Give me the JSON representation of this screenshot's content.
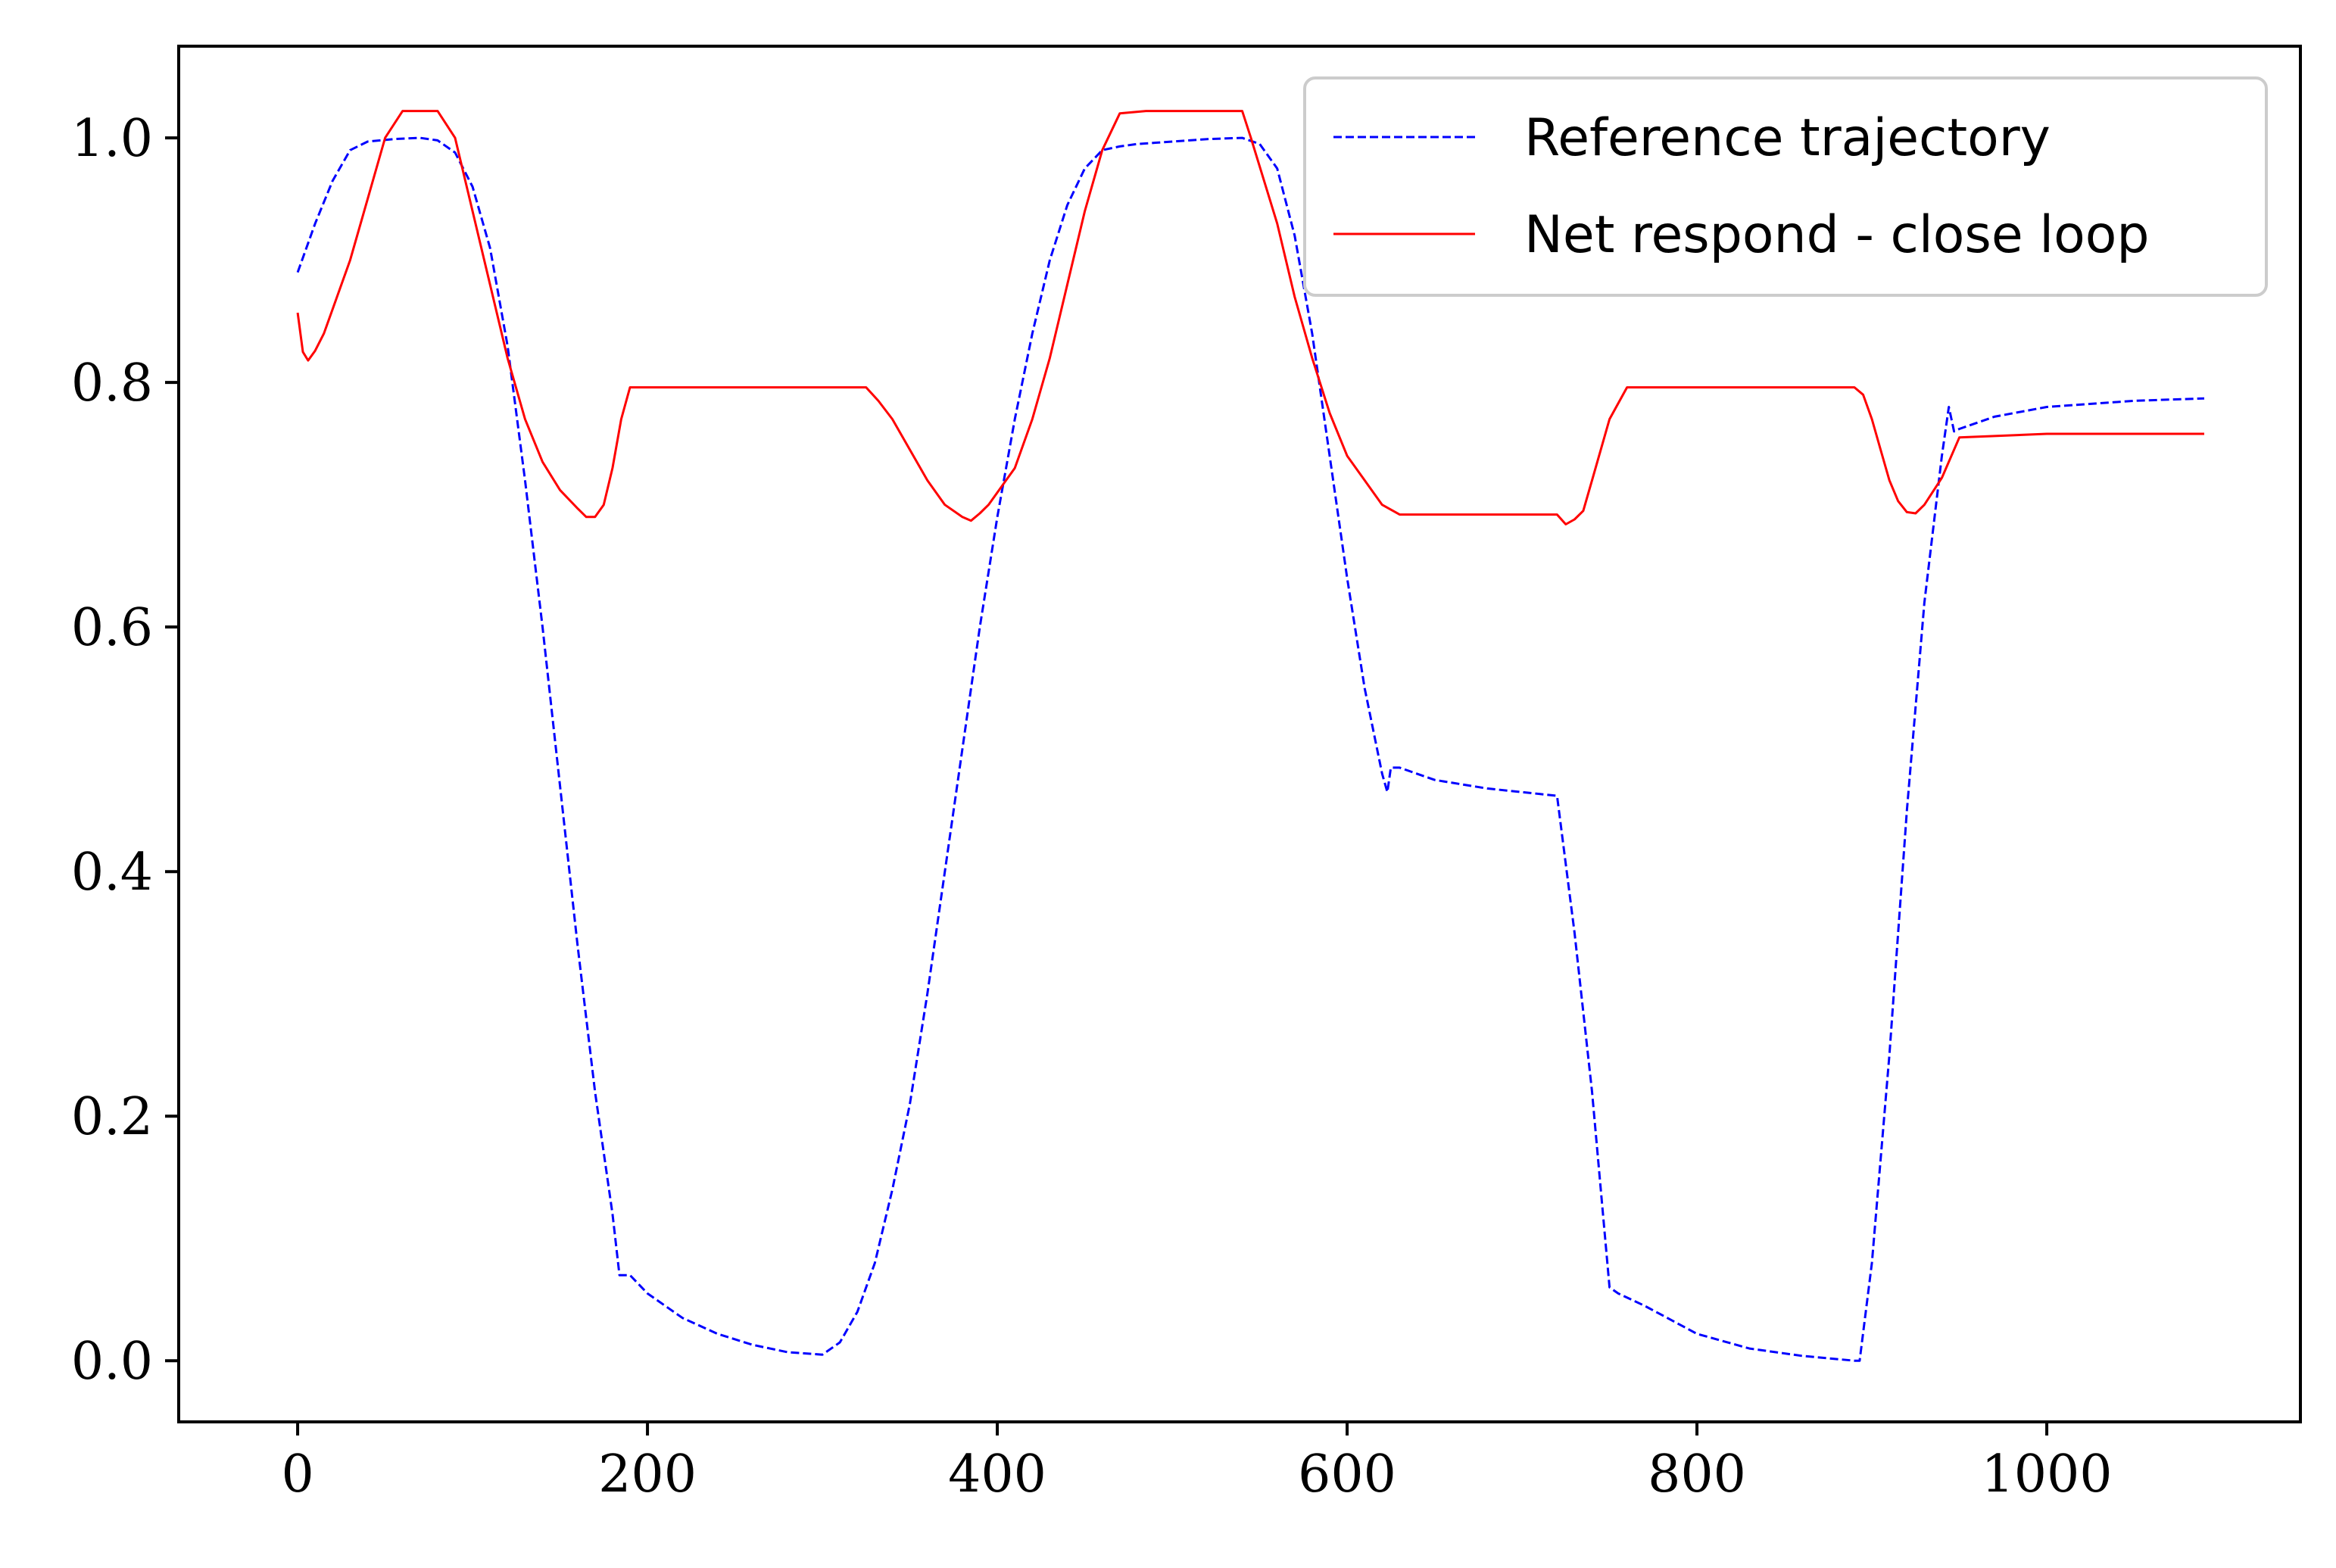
{
  "chart_data": {
    "type": "line",
    "title": "",
    "xlabel": "",
    "ylabel": "",
    "xlim": [
      -68,
      1145
    ],
    "ylim": [
      -0.05,
      1.075
    ],
    "x_ticks": [
      0,
      200,
      400,
      600,
      800,
      1000
    ],
    "x_tick_labels": [
      "0",
      "200",
      "400",
      "600",
      "800",
      "1000"
    ],
    "y_ticks": [
      0.0,
      0.2,
      0.4,
      0.6,
      0.8,
      1.0
    ],
    "y_tick_labels": [
      "0.0",
      "0.2",
      "0.4",
      "0.6",
      "0.8",
      "1.0"
    ],
    "grid": false,
    "legend_position": "top-right",
    "series": [
      {
        "name": "Reference trajectory",
        "color": "#0000ff",
        "style": "dashed",
        "x": [
          0,
          10,
          20,
          30,
          40,
          55,
          70,
          80,
          90,
          100,
          110,
          120,
          130,
          140,
          150,
          160,
          170,
          180,
          184,
          190,
          200,
          220,
          240,
          260,
          280,
          300,
          310,
          320,
          330,
          340,
          350,
          360,
          370,
          380,
          390,
          400,
          410,
          420,
          430,
          440,
          450,
          460,
          470,
          480,
          500,
          520,
          540,
          550,
          560,
          570,
          580,
          590,
          600,
          610,
          620,
          623,
          625,
          630,
          650,
          680,
          720,
          730,
          740,
          750,
          755,
          770,
          800,
          830,
          860,
          890,
          893,
          900,
          910,
          920,
          930,
          940,
          944,
          947,
          950,
          970,
          1000,
          1050,
          1090
        ],
        "values": [
          0.89,
          0.93,
          0.965,
          0.99,
          0.997,
          0.999,
          1.0,
          0.998,
          0.988,
          0.96,
          0.91,
          0.83,
          0.72,
          0.6,
          0.47,
          0.34,
          0.22,
          0.12,
          0.07,
          0.07,
          0.055,
          0.035,
          0.022,
          0.013,
          0.007,
          0.005,
          0.015,
          0.04,
          0.08,
          0.14,
          0.21,
          0.3,
          0.4,
          0.5,
          0.6,
          0.69,
          0.77,
          0.84,
          0.9,
          0.945,
          0.975,
          0.99,
          0.993,
          0.995,
          0.997,
          0.999,
          1.0,
          0.995,
          0.975,
          0.92,
          0.84,
          0.74,
          0.64,
          0.55,
          0.48,
          0.465,
          0.485,
          0.485,
          0.475,
          0.468,
          0.462,
          0.35,
          0.22,
          0.06,
          0.055,
          0.045,
          0.022,
          0.01,
          0.004,
          0.0,
          0.0,
          0.08,
          0.25,
          0.45,
          0.62,
          0.74,
          0.78,
          0.76,
          0.762,
          0.772,
          0.78,
          0.785,
          0.787
        ]
      },
      {
        "name": "Net respond - close loop",
        "color": "#ff0000",
        "style": "solid",
        "x": [
          0,
          3,
          6,
          10,
          15,
          20,
          30,
          40,
          50,
          60,
          70,
          80,
          90,
          100,
          110,
          120,
          130,
          140,
          150,
          160,
          165,
          170,
          175,
          180,
          185,
          190,
          200,
          250,
          300,
          325,
          332,
          340,
          350,
          360,
          370,
          380,
          385,
          390,
          395,
          400,
          410,
          420,
          430,
          440,
          450,
          460,
          470,
          485,
          500,
          540,
          545,
          560,
          570,
          580,
          590,
          600,
          610,
          620,
          630,
          650,
          700,
          720,
          725,
          730,
          735,
          740,
          750,
          760,
          800,
          850,
          890,
          895,
          900,
          905,
          910,
          915,
          920,
          925,
          930,
          940,
          950,
          1000,
          1050,
          1090
        ],
        "values": [
          0.857,
          0.825,
          0.818,
          0.826,
          0.84,
          0.86,
          0.9,
          0.95,
          1.0,
          1.022,
          1.022,
          1.022,
          1.0,
          0.94,
          0.88,
          0.82,
          0.77,
          0.735,
          0.712,
          0.697,
          0.69,
          0.69,
          0.7,
          0.73,
          0.77,
          0.796,
          0.796,
          0.796,
          0.796,
          0.796,
          0.785,
          0.77,
          0.745,
          0.72,
          0.7,
          0.69,
          0.687,
          0.693,
          0.7,
          0.71,
          0.73,
          0.77,
          0.82,
          0.88,
          0.94,
          0.99,
          1.02,
          1.022,
          1.022,
          1.022,
          1.0,
          0.93,
          0.87,
          0.82,
          0.775,
          0.74,
          0.72,
          0.7,
          0.692,
          0.692,
          0.692,
          0.692,
          0.684,
          0.688,
          0.695,
          0.72,
          0.77,
          0.796,
          0.796,
          0.796,
          0.796,
          0.79,
          0.77,
          0.745,
          0.72,
          0.703,
          0.694,
          0.693,
          0.7,
          0.722,
          0.755,
          0.758,
          0.758,
          0.758
        ]
      }
    ]
  }
}
